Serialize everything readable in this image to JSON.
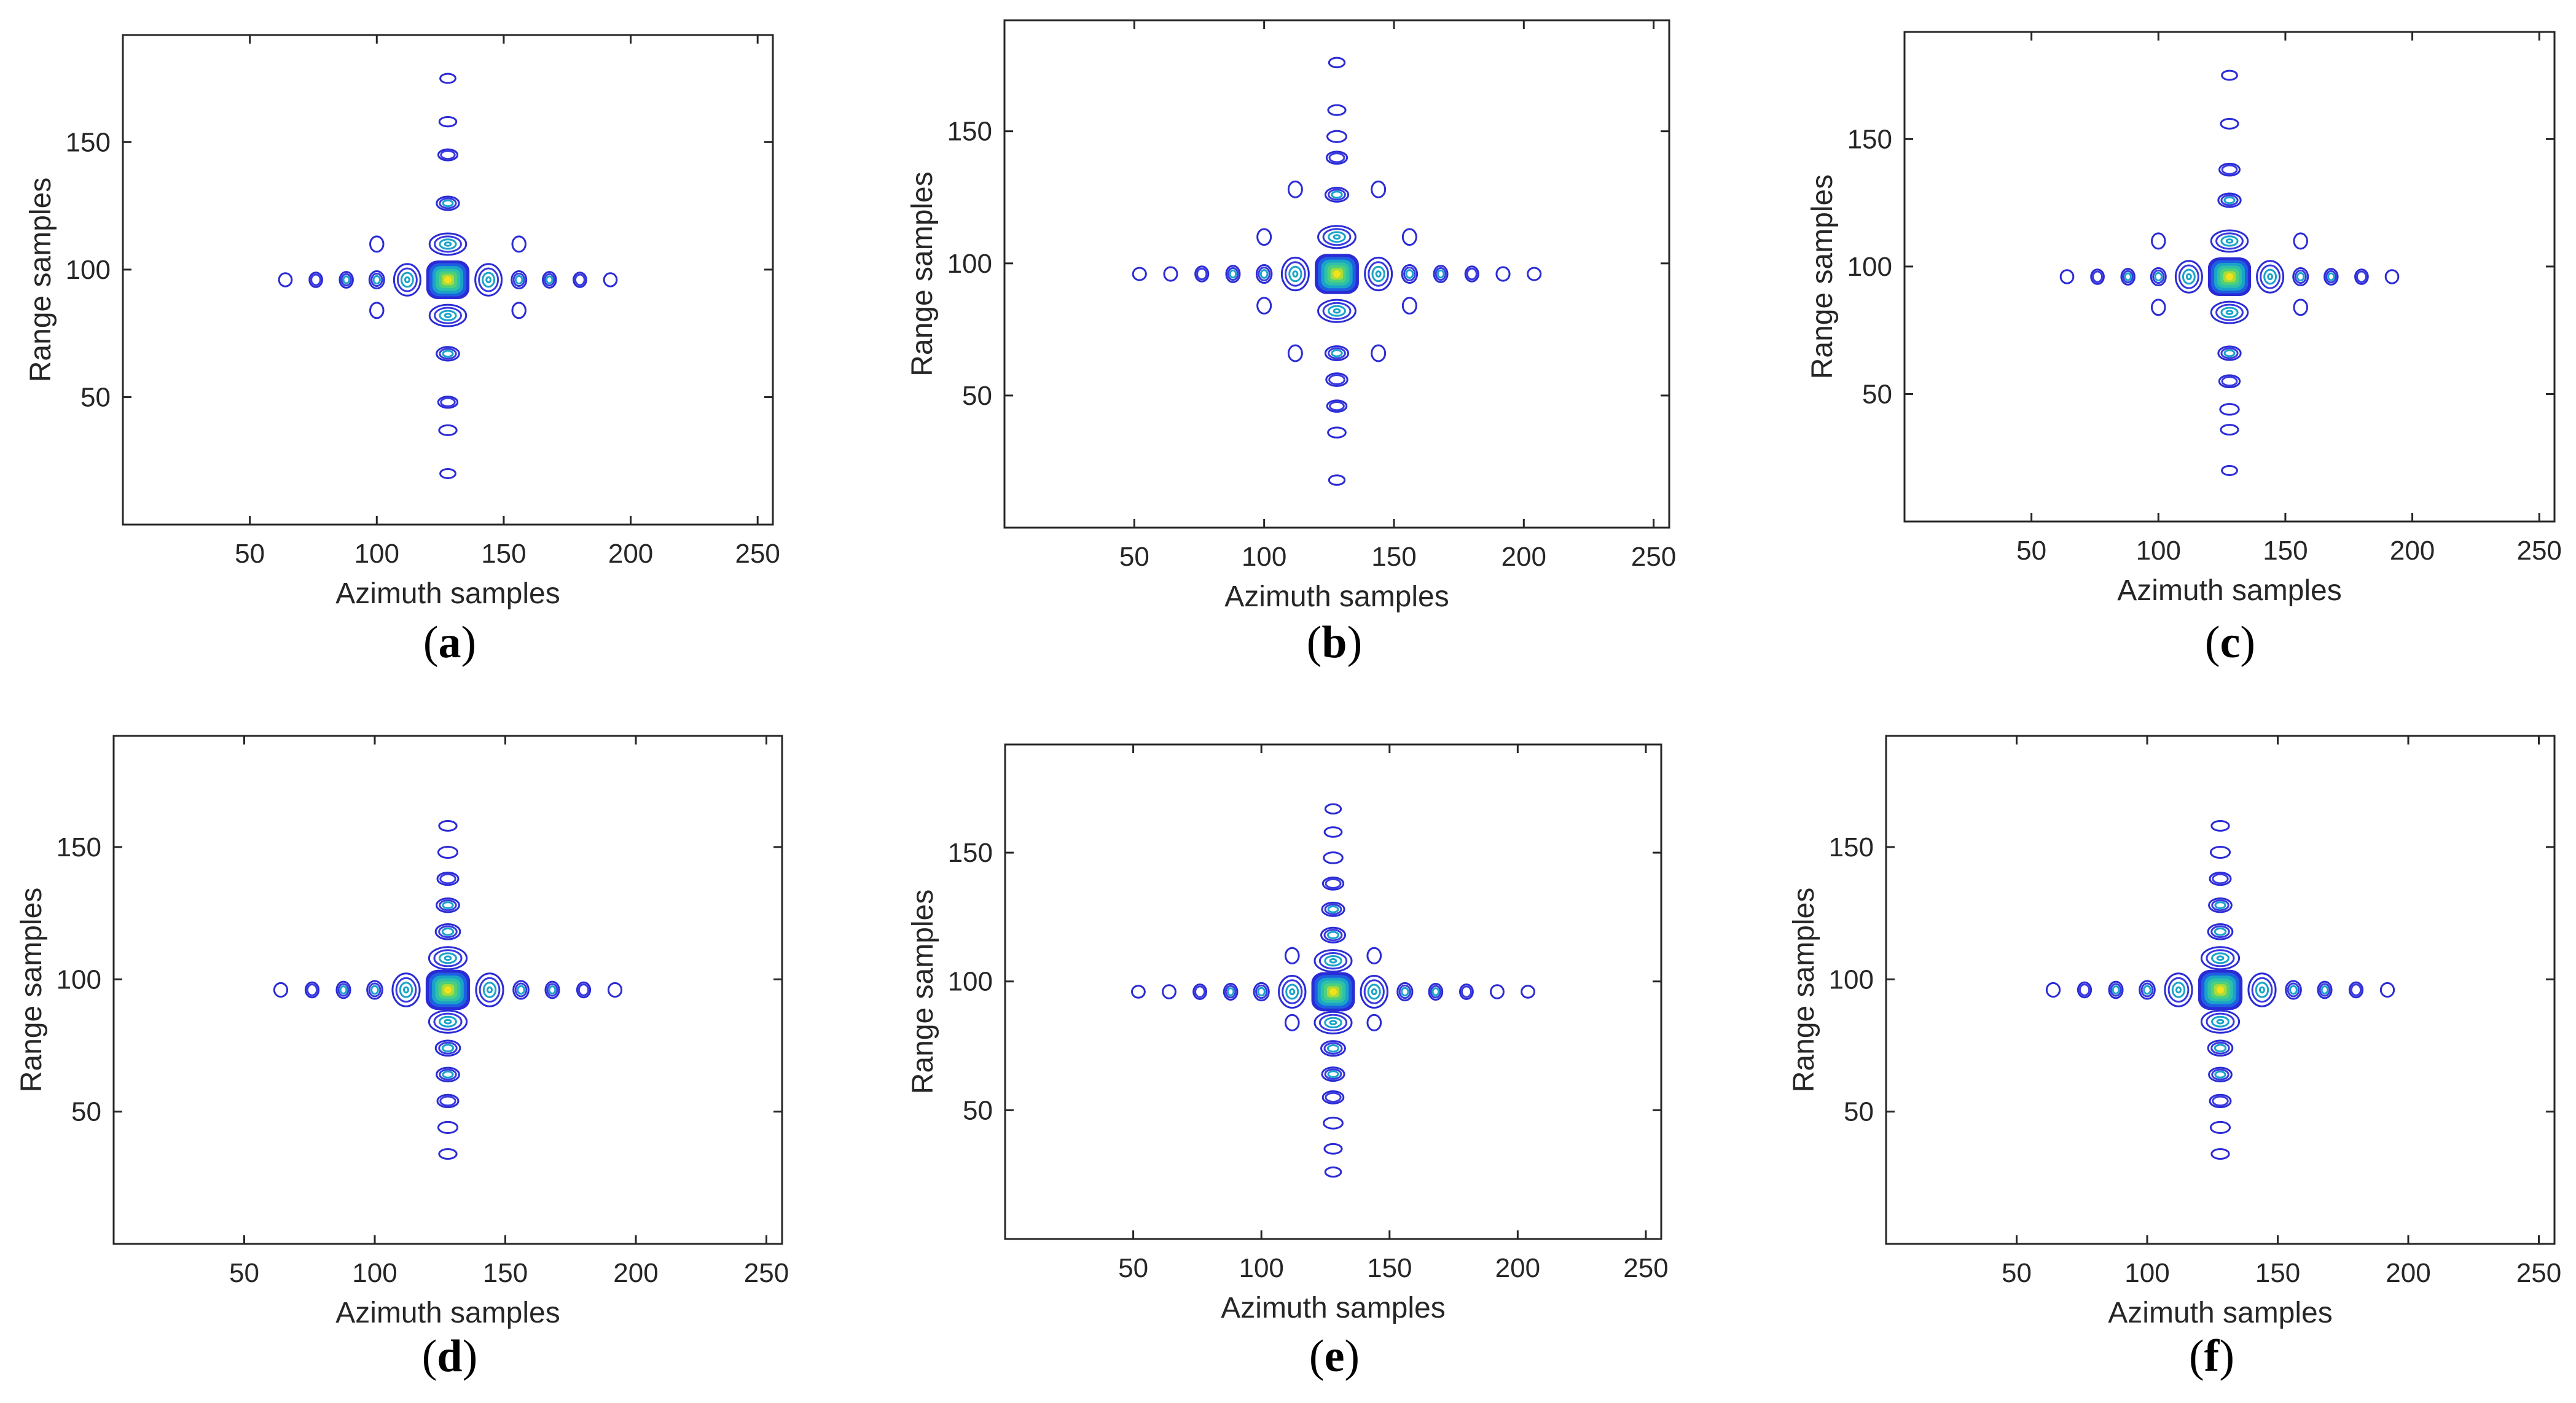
{
  "figure": {
    "panels": [
      {
        "label": "(a)",
        "letter": "a",
        "xlabel": "Azimuth samples",
        "ylabel": "Range samples"
      },
      {
        "label": "(b)",
        "letter": "b",
        "xlabel": "Azimuth samples",
        "ylabel": "Range samples"
      },
      {
        "label": "(c)",
        "letter": "c",
        "xlabel": "Azimuth samples",
        "ylabel": "Range samples"
      },
      {
        "label": "(d)",
        "letter": "d",
        "xlabel": "Azimuth samples",
        "ylabel": "Range samples"
      },
      {
        "label": "(e)",
        "letter": "e",
        "xlabel": "Azimuth samples",
        "ylabel": "Range samples"
      },
      {
        "label": "(f)",
        "letter": "f",
        "xlabel": "Azimuth samples",
        "ylabel": "Range samples"
      }
    ]
  },
  "colors": {
    "contour_outer": "#2b2bd6",
    "contour_mid": "#1aa3c8",
    "contour_inner": "#4fd07a",
    "peak": "#f2e11c",
    "axis": "#262626"
  },
  "chart_data": [
    {
      "panel": "a",
      "type": "contour",
      "xlabel": "Azimuth samples",
      "ylabel": "Range samples",
      "xlim": [
        0,
        256
      ],
      "ylim": [
        0,
        192
      ],
      "xticks": [
        50,
        100,
        150,
        200,
        250
      ],
      "yticks": [
        50,
        100,
        150
      ],
      "peak": {
        "x": 128,
        "y": 96
      },
      "azimuth_sidelobes": [
        64,
        76,
        88,
        100,
        112,
        144,
        156,
        168,
        180,
        192
      ],
      "range_sidelobes": [
        20,
        37,
        48,
        67,
        82,
        110,
        126,
        145,
        158,
        175
      ],
      "cross_sidelobes": [
        [
          100,
          84
        ],
        [
          100,
          110
        ],
        [
          156,
          84
        ],
        [
          156,
          110
        ]
      ]
    },
    {
      "panel": "b",
      "type": "contour",
      "xlabel": "Azimuth samples",
      "ylabel": "Range samples",
      "xlim": [
        0,
        256
      ],
      "ylim": [
        0,
        192
      ],
      "xticks": [
        50,
        100,
        150,
        200,
        250
      ],
      "yticks": [
        50,
        100,
        150
      ],
      "peak": {
        "x": 128,
        "y": 96
      },
      "azimuth_sidelobes": [
        52,
        64,
        76,
        88,
        100,
        112,
        144,
        156,
        168,
        180,
        192,
        204
      ],
      "range_sidelobes": [
        18,
        36,
        46,
        56,
        66,
        82,
        110,
        126,
        140,
        148,
        158,
        176
      ],
      "cross_sidelobes": [
        [
          100,
          84
        ],
        [
          100,
          110
        ],
        [
          156,
          84
        ],
        [
          156,
          110
        ],
        [
          112,
          66
        ],
        [
          144,
          66
        ],
        [
          112,
          128
        ],
        [
          144,
          128
        ]
      ]
    },
    {
      "panel": "c",
      "type": "contour",
      "xlabel": "Azimuth samples",
      "ylabel": "Range samples",
      "xlim": [
        0,
        256
      ],
      "ylim": [
        0,
        192
      ],
      "xticks": [
        50,
        100,
        150,
        200,
        250
      ],
      "yticks": [
        50,
        100,
        150
      ],
      "peak": {
        "x": 128,
        "y": 96
      },
      "azimuth_sidelobes": [
        64,
        76,
        88,
        100,
        112,
        144,
        156,
        168,
        180,
        192
      ],
      "range_sidelobes": [
        20,
        36,
        44,
        55,
        66,
        82,
        110,
        126,
        138,
        156,
        175
      ],
      "cross_sidelobes": [
        [
          100,
          84
        ],
        [
          100,
          110
        ],
        [
          156,
          84
        ],
        [
          156,
          110
        ]
      ]
    },
    {
      "panel": "d",
      "type": "contour",
      "xlabel": "Azimuth samples",
      "ylabel": "Range samples",
      "xlim": [
        0,
        256
      ],
      "ylim": [
        0,
        192
      ],
      "xticks": [
        50,
        100,
        150,
        200,
        250
      ],
      "yticks": [
        50,
        100,
        150
      ],
      "peak": {
        "x": 128,
        "y": 96
      },
      "azimuth_sidelobes": [
        64,
        76,
        88,
        100,
        112,
        144,
        156,
        168,
        180,
        192
      ],
      "range_sidelobes": [
        34,
        44,
        54,
        64,
        74,
        84,
        108,
        118,
        128,
        138,
        148,
        158
      ],
      "cross_sidelobes": []
    },
    {
      "panel": "e",
      "type": "contour",
      "xlabel": "Azimuth samples",
      "ylabel": "Range samples",
      "xlim": [
        0,
        256
      ],
      "ylim": [
        0,
        192
      ],
      "xticks": [
        50,
        100,
        150,
        200,
        250
      ],
      "yticks": [
        50,
        100,
        150
      ],
      "peak": {
        "x": 128,
        "y": 96
      },
      "azimuth_sidelobes": [
        52,
        64,
        76,
        88,
        100,
        112,
        144,
        156,
        168,
        180,
        192,
        204
      ],
      "range_sidelobes": [
        26,
        35,
        45,
        55,
        64,
        74,
        84,
        108,
        118,
        128,
        138,
        148,
        158,
        167
      ],
      "cross_sidelobes": [
        [
          112,
          84
        ],
        [
          144,
          84
        ],
        [
          112,
          110
        ],
        [
          144,
          110
        ]
      ]
    },
    {
      "panel": "f",
      "type": "contour",
      "xlabel": "Azimuth samples",
      "ylabel": "Range samples",
      "xlim": [
        0,
        256
      ],
      "ylim": [
        0,
        192
      ],
      "xticks": [
        50,
        100,
        150,
        200,
        250
      ],
      "yticks": [
        50,
        100,
        150
      ],
      "peak": {
        "x": 128,
        "y": 96
      },
      "azimuth_sidelobes": [
        64,
        76,
        88,
        100,
        112,
        144,
        156,
        168,
        180,
        192
      ],
      "range_sidelobes": [
        34,
        44,
        54,
        64,
        74,
        84,
        108,
        118,
        128,
        138,
        148,
        158
      ],
      "cross_sidelobes": []
    }
  ]
}
